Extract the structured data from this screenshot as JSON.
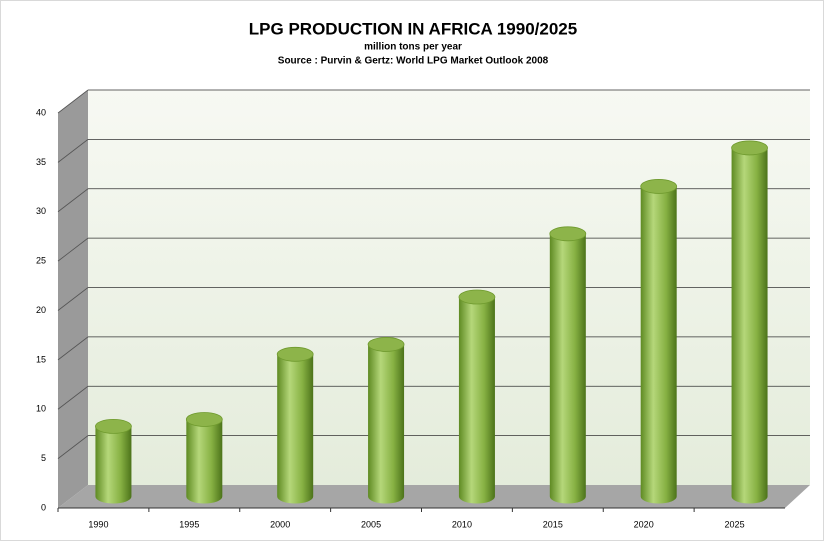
{
  "chart_data": {
    "type": "bar",
    "title": "LPG PRODUCTION IN AFRICA 1990/2025",
    "subtitle": "million tons per year",
    "source": "Source : Purvin & Gertz: World LPG Market Outlook 2008",
    "categories": [
      "1990",
      "1995",
      "2000",
      "2005",
      "2010",
      "2015",
      "2020",
      "2025"
    ],
    "values": [
      7.1,
      7.8,
      14.4,
      15.4,
      20.2,
      26.6,
      31.4,
      35.3
    ],
    "color": "#8db44a",
    "ylim": [
      0,
      40
    ],
    "yticks": [
      0,
      5,
      10,
      15,
      20,
      25,
      30,
      35,
      40
    ],
    "grid": true
  }
}
